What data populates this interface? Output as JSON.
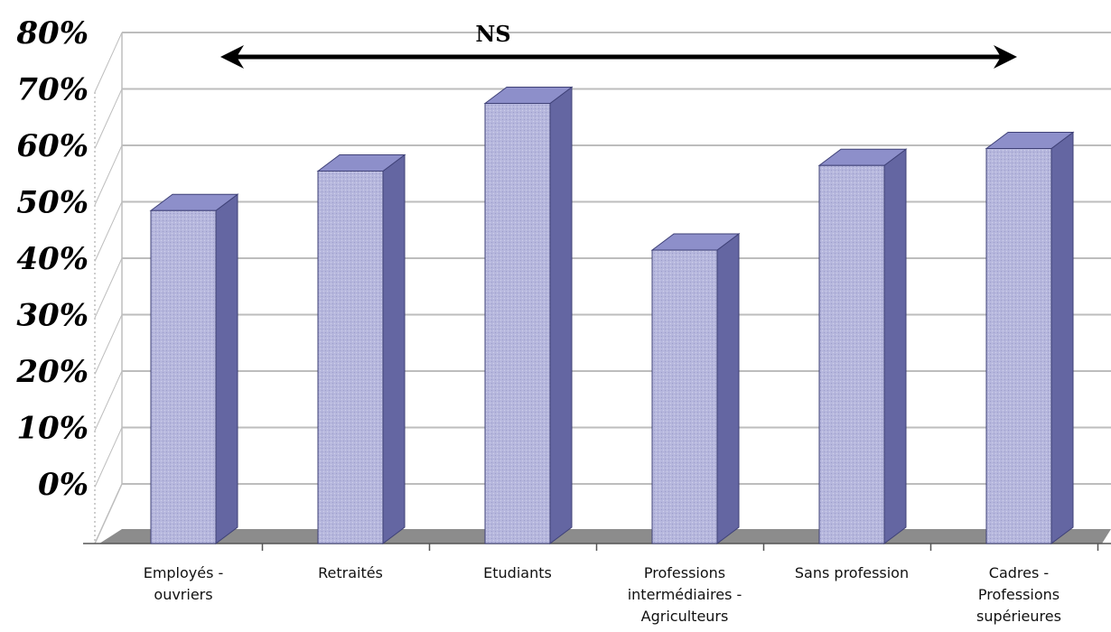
{
  "chart_data": {
    "type": "bar",
    "categories": [
      [
        "Employés -",
        "ouvriers"
      ],
      [
        "Retraités"
      ],
      [
        "Etudiants"
      ],
      [
        "Professions",
        "intermédiaires -",
        "Agriculteurs"
      ],
      [
        "Sans profession"
      ],
      [
        "Cadres -",
        "Professions",
        "supérieures"
      ]
    ],
    "values": [
      51,
      58,
      70,
      44,
      59,
      62
    ],
    "ylim": [
      0,
      80
    ],
    "yticks": [
      "0%",
      "10%",
      "20%",
      "30%",
      "40%",
      "50%",
      "60%",
      "70%",
      "80%"
    ],
    "annotation": "NS",
    "grid": true,
    "colors": {
      "bar_front": "#b6b7dd",
      "bar_side": "#6466a2",
      "bar_top": "#8d8fca",
      "floor": "#8c8c8c",
      "grid": "#bdbdbd"
    }
  }
}
